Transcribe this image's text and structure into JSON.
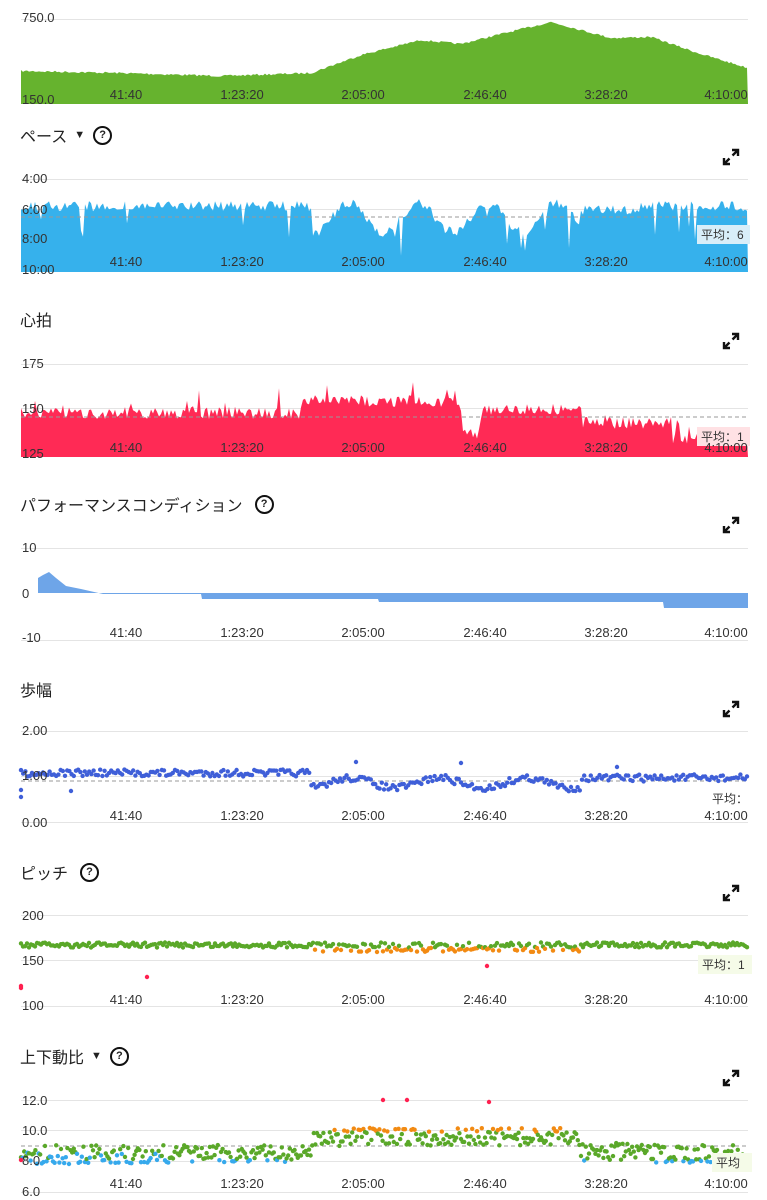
{
  "x_labels": [
    "41:40",
    "1:23:20",
    "2:05:00",
    "2:46:40",
    "3:28:20",
    "4:10:00"
  ],
  "elevation": {
    "y_labels": [
      "750.0",
      "150.0"
    ],
    "color": "#66b32e"
  },
  "pace": {
    "title": "ペース",
    "has_dropdown": true,
    "y_labels": [
      "4:00",
      "6:00",
      "8:00",
      "10:00"
    ],
    "avg_label": "平均：6",
    "color": "#36b1ec"
  },
  "heart_rate": {
    "title": "心拍",
    "y_labels": [
      "175",
      "150",
      "125"
    ],
    "avg_label": "平均：1",
    "color": "#ff2a55"
  },
  "performance": {
    "title": "パフォーマンスコンディション",
    "y_labels": [
      "10",
      "0",
      "-10"
    ],
    "color": "#6ea5e8"
  },
  "stride": {
    "title": "歩幅",
    "y_labels": [
      "2.00",
      "1.00",
      "0.00"
    ],
    "avg_label": "平均：",
    "color": "#3f5fd8"
  },
  "cadence": {
    "title": "ピッチ",
    "y_labels": [
      "200",
      "150",
      "100"
    ],
    "avg_label": "平均：1",
    "colors": [
      "#5aa829",
      "#f28a12",
      "#ff2050"
    ]
  },
  "vertical_ratio": {
    "title": "上下動比",
    "has_dropdown": true,
    "y_labels": [
      "12.0",
      "10.0",
      "8.0",
      "6.0"
    ],
    "avg_label": "平均",
    "colors": [
      "#5aa829",
      "#f28a12",
      "#36a9ec",
      "#ff2050"
    ]
  }
}
